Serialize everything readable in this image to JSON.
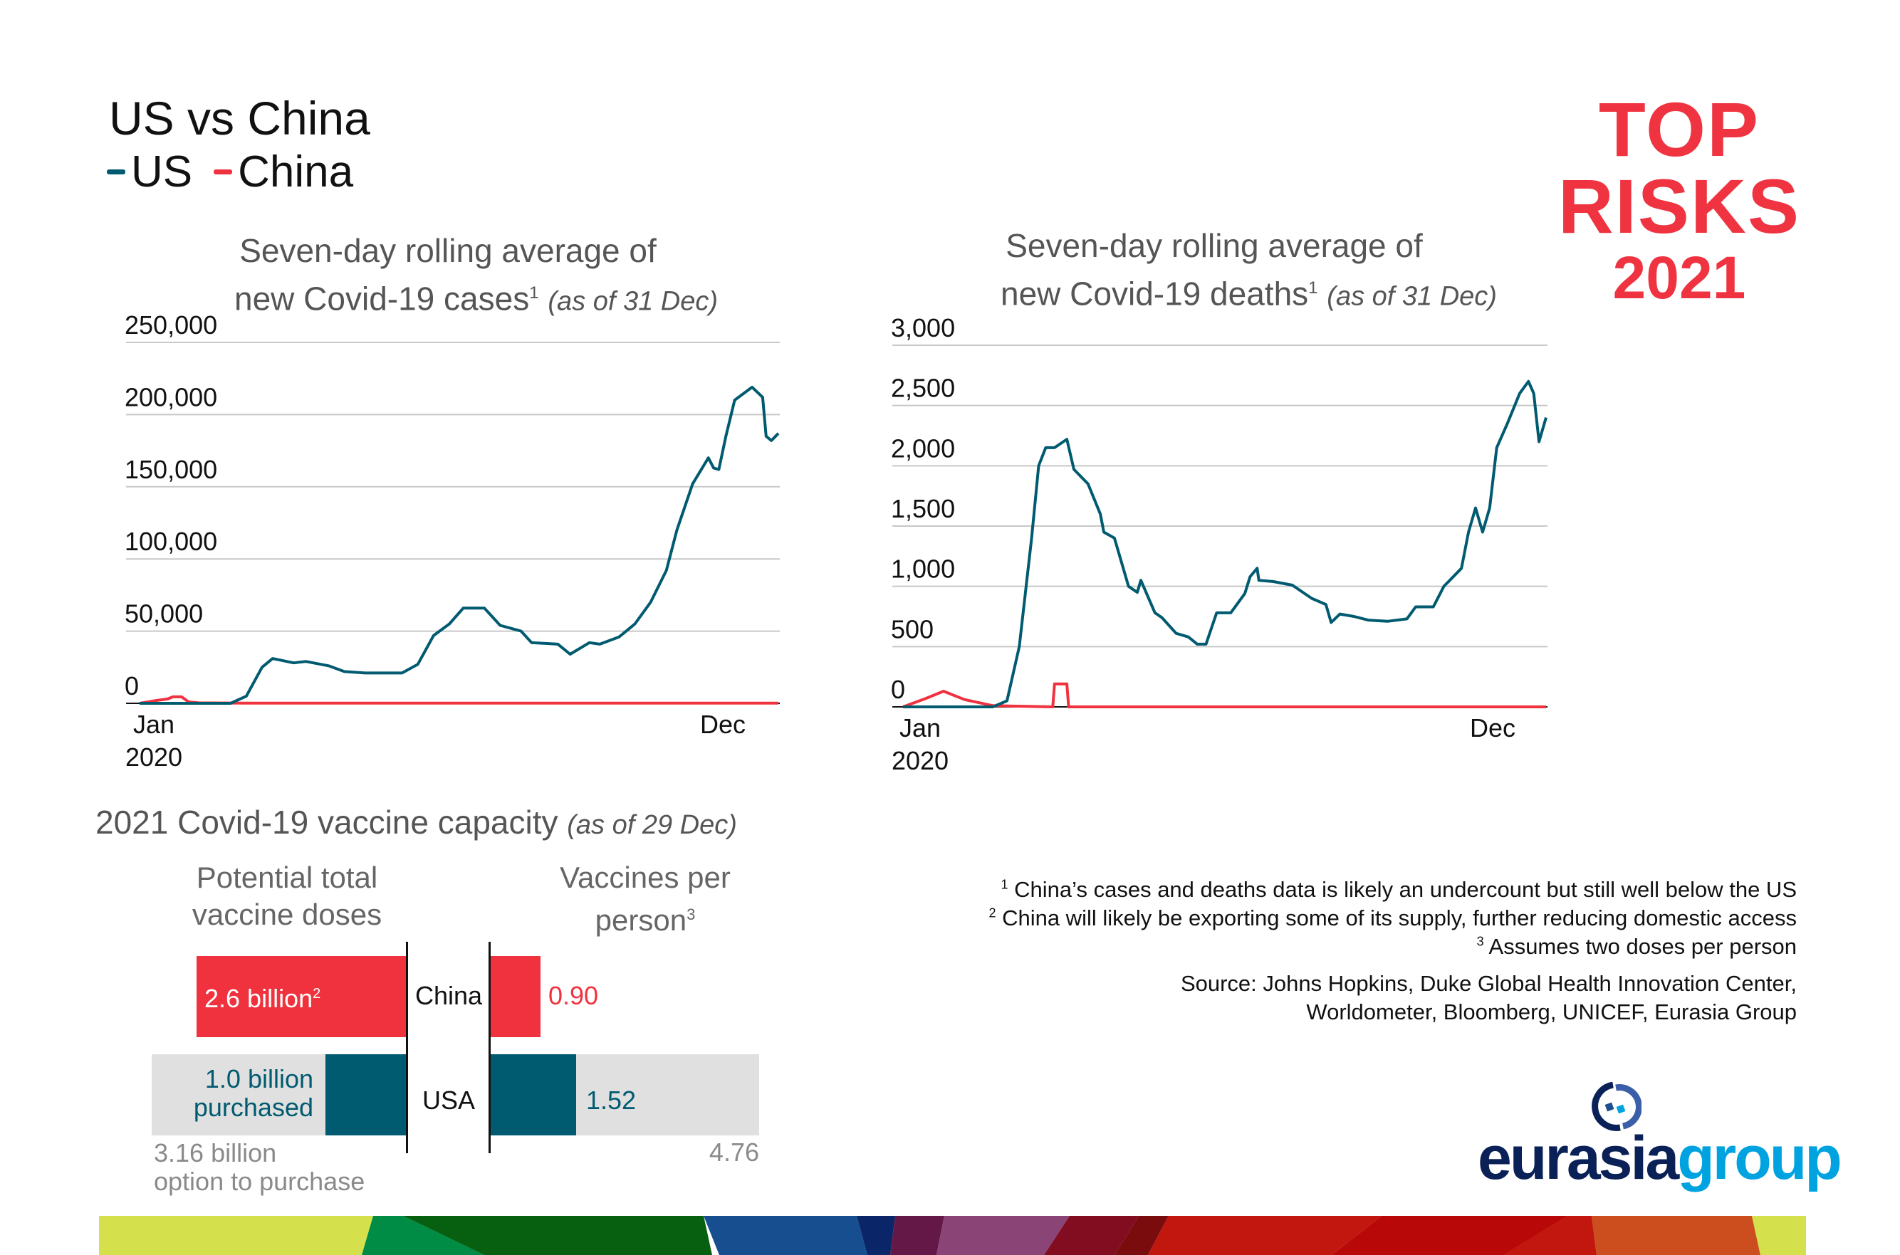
{
  "header": {
    "title": "US vs China",
    "legend": [
      {
        "label": "US",
        "color": "#005a70"
      },
      {
        "label": "China",
        "color": "#f0323f"
      }
    ]
  },
  "brand": {
    "top_risks": [
      "TOP",
      "RISKS",
      "2021"
    ],
    "top_risks_color": "#ef3340",
    "eurasia_logo": {
      "part1": "eurasia",
      "part2": "group",
      "color1": "#0a2158",
      "color2": "#00a3e0"
    }
  },
  "chart_data": [
    {
      "type": "line",
      "title": "Seven-day rolling average of",
      "title_line2": "new Covid-19 cases",
      "title_sup": "1",
      "title_note": "(as of 31 Dec)",
      "ylim": [
        0,
        250000
      ],
      "yticks": [
        "0",
        "50,000",
        "100,000",
        "150,000",
        "200,000",
        "250,000"
      ],
      "ytick_values": [
        0,
        50000,
        100000,
        150000,
        200000,
        250000
      ],
      "xticks": [
        {
          "label": "Jan",
          "date": "2020-01-01"
        },
        {
          "label": "Dec",
          "date": "2020-12-01"
        }
      ],
      "xyear": "2020",
      "xlim": [
        "2020-01-01",
        "2020-12-31"
      ],
      "grid": true,
      "series": [
        {
          "name": "US",
          "color": "#005a70",
          "points": [
            [
              "2020-01-01",
              0
            ],
            [
              "2020-02-22",
              0
            ],
            [
              "2020-03-02",
              5000
            ],
            [
              "2020-03-11",
              25000
            ],
            [
              "2020-03-17",
              31000
            ],
            [
              "2020-03-29",
              28000
            ],
            [
              "2020-04-05",
              29000
            ],
            [
              "2020-04-18",
              26000
            ],
            [
              "2020-04-27",
              22000
            ],
            [
              "2020-05-09",
              21000
            ],
            [
              "2020-05-21",
              21000
            ],
            [
              "2020-05-30",
              21000
            ],
            [
              "2020-06-08",
              27000
            ],
            [
              "2020-06-17",
              47000
            ],
            [
              "2020-06-26",
              55000
            ],
            [
              "2020-07-04",
              66000
            ],
            [
              "2020-07-16",
              66000
            ],
            [
              "2020-07-25",
              54000
            ],
            [
              "2020-08-06",
              50000
            ],
            [
              "2020-08-12",
              42000
            ],
            [
              "2020-08-27",
              41000
            ],
            [
              "2020-09-03",
              34000
            ],
            [
              "2020-09-14",
              42000
            ],
            [
              "2020-09-20",
              41000
            ],
            [
              "2020-10-01",
              46000
            ],
            [
              "2020-10-10",
              55000
            ],
            [
              "2020-10-19",
              70000
            ],
            [
              "2020-10-28",
              92000
            ],
            [
              "2020-11-03",
              120000
            ],
            [
              "2020-11-12",
              152000
            ],
            [
              "2020-11-21",
              170000
            ],
            [
              "2020-11-24",
              163000
            ],
            [
              "2020-11-27",
              162000
            ],
            [
              "2020-12-01",
              185000
            ],
            [
              "2020-12-06",
              210000
            ],
            [
              "2020-12-16",
              219000
            ],
            [
              "2020-12-22",
              212000
            ],
            [
              "2020-12-24",
              185000
            ],
            [
              "2020-12-27",
              182000
            ],
            [
              "2020-12-31",
              187000
            ]
          ]
        },
        {
          "name": "China",
          "color": "#f0323f",
          "points": [
            [
              "2020-01-01",
              0
            ],
            [
              "2020-01-11",
              2000
            ],
            [
              "2020-01-17",
              3000
            ],
            [
              "2020-01-20",
              4500
            ],
            [
              "2020-01-25",
              4500
            ],
            [
              "2020-01-29",
              1000
            ],
            [
              "2020-02-04",
              300
            ],
            [
              "2020-03-01",
              100
            ],
            [
              "2020-12-31",
              100
            ]
          ]
        }
      ]
    },
    {
      "type": "line",
      "title": "Seven-day rolling average of",
      "title_line2": "new Covid-19 deaths",
      "title_sup": "1",
      "title_note": "(as of 31 Dec)",
      "ylim": [
        0,
        3000
      ],
      "yticks": [
        "0",
        "500",
        "1,000",
        "1,500",
        "2,000",
        "2,500",
        "3,000"
      ],
      "ytick_values": [
        0,
        500,
        1000,
        1500,
        2000,
        2500,
        3000
      ],
      "xticks": [
        {
          "label": "Jan",
          "date": "2020-01-01"
        },
        {
          "label": "Dec",
          "date": "2020-12-01"
        }
      ],
      "xyear": "2020",
      "xlim": [
        "2020-01-01",
        "2020-12-31"
      ],
      "grid": true,
      "series": [
        {
          "name": "US",
          "color": "#005a70",
          "points": [
            [
              "2020-01-01",
              0
            ],
            [
              "2020-02-21",
              0
            ],
            [
              "2020-02-29",
              50
            ],
            [
              "2020-03-07",
              500
            ],
            [
              "2020-03-14",
              1400
            ],
            [
              "2020-03-18",
              2000
            ],
            [
              "2020-03-22",
              2150
            ],
            [
              "2020-03-27",
              2150
            ],
            [
              "2020-04-03",
              2220
            ],
            [
              "2020-04-07",
              1970
            ],
            [
              "2020-04-15",
              1850
            ],
            [
              "2020-04-22",
              1600
            ],
            [
              "2020-04-24",
              1450
            ],
            [
              "2020-04-30",
              1400
            ],
            [
              "2020-05-04",
              1200
            ],
            [
              "2020-05-08",
              1000
            ],
            [
              "2020-05-13",
              950
            ],
            [
              "2020-05-15",
              1050
            ],
            [
              "2020-05-23",
              780
            ],
            [
              "2020-05-27",
              740
            ],
            [
              "2020-06-04",
              610
            ],
            [
              "2020-06-11",
              580
            ],
            [
              "2020-06-16",
              520
            ],
            [
              "2020-06-21",
              520
            ],
            [
              "2020-06-27",
              780
            ],
            [
              "2020-07-05",
              780
            ],
            [
              "2020-07-13",
              940
            ],
            [
              "2020-07-16",
              1080
            ],
            [
              "2020-07-20",
              1150
            ],
            [
              "2020-07-21",
              1050
            ],
            [
              "2020-07-29",
              1040
            ],
            [
              "2020-08-09",
              1010
            ],
            [
              "2020-08-20",
              900
            ],
            [
              "2020-08-28",
              850
            ],
            [
              "2020-08-31",
              700
            ],
            [
              "2020-09-05",
              770
            ],
            [
              "2020-09-13",
              750
            ],
            [
              "2020-09-21",
              720
            ],
            [
              "2020-10-02",
              710
            ],
            [
              "2020-10-13",
              730
            ],
            [
              "2020-10-18",
              830
            ],
            [
              "2020-10-28",
              830
            ],
            [
              "2020-11-03",
              1000
            ],
            [
              "2020-11-13",
              1150
            ],
            [
              "2020-11-17",
              1450
            ],
            [
              "2020-11-21",
              1650
            ],
            [
              "2020-11-25",
              1450
            ],
            [
              "2020-11-29",
              1650
            ],
            [
              "2020-12-03",
              2150
            ],
            [
              "2020-12-09",
              2350
            ],
            [
              "2020-12-16",
              2600
            ],
            [
              "2020-12-21",
              2700
            ],
            [
              "2020-12-24",
              2600
            ],
            [
              "2020-12-27",
              2200
            ],
            [
              "2020-12-31",
              2400
            ]
          ]
        },
        {
          "name": "China",
          "color": "#f0323f",
          "points": [
            [
              "2020-01-01",
              0
            ],
            [
              "2020-01-14",
              70
            ],
            [
              "2020-01-24",
              130
            ],
            [
              "2020-02-05",
              60
            ],
            [
              "2020-02-21",
              10
            ],
            [
              "2020-03-26",
              0
            ],
            [
              "2020-03-27",
              190
            ],
            [
              "2020-04-03",
              190
            ],
            [
              "2020-04-04",
              0
            ],
            [
              "2020-12-31",
              0
            ]
          ]
        }
      ]
    },
    {
      "type": "bar",
      "title": "2021 Covid-19 vaccine capacity",
      "title_note": "(as of 29 Dec)",
      "panels": [
        {
          "header": [
            "Potential total",
            "vaccine doses"
          ],
          "max": 3.16,
          "max_label": [
            "3.16 billion",
            "option to purchase"
          ],
          "bars": [
            {
              "category": "China",
              "value": 2.6,
              "label": "2.6 billion",
              "label_sup": "2",
              "color": "#f0323f"
            },
            {
              "category": "USA",
              "value": 1.0,
              "label": [
                "1.0 billion",
                "purchased"
              ],
              "color": "#005a70",
              "background_value": 3.16,
              "background_color": "#e0e0e0"
            }
          ]
        },
        {
          "header": [
            "Vaccines per",
            "person"
          ],
          "header_sup": "3",
          "max": 4.76,
          "max_label": "4.76",
          "bars": [
            {
              "category": "China",
              "value": 0.9,
              "label": "0.90",
              "color": "#f0323f"
            },
            {
              "category": "USA",
              "value": 1.52,
              "label": "1.52",
              "color": "#005a70",
              "background_value": 4.76,
              "background_color": "#e0e0e0"
            }
          ]
        }
      ],
      "categories": [
        "China",
        "USA"
      ]
    }
  ],
  "footnotes": [
    {
      "sup": "1",
      "text": " China’s cases and deaths data is likely an undercount but still well below the US"
    },
    {
      "sup": "2",
      "text": " China will likely be exporting some of its supply, further reducing domestic access"
    },
    {
      "sup": "3",
      "text": " Assumes two doses per person"
    }
  ],
  "source": [
    "Source: Johns Hopkins, Duke Global Health Innovation Center,",
    "Worldometer, Bloomberg, UNICEF, Eurasia Group"
  ]
}
